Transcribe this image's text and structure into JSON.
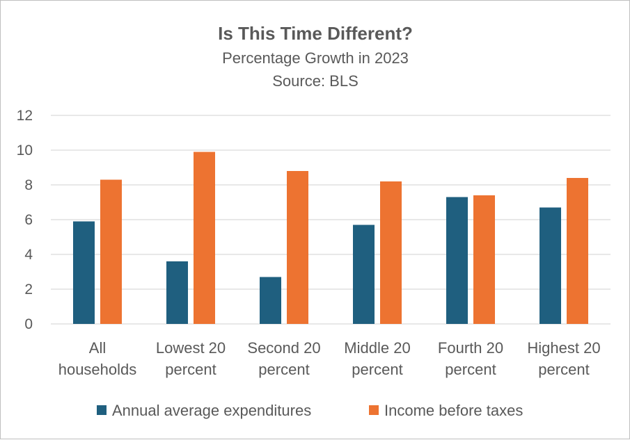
{
  "chart_data": {
    "type": "bar",
    "title": "Is This Time Different?",
    "subtitle_lines": [
      "Percentage Growth in 2023",
      "Source: BLS"
    ],
    "categories": [
      [
        "All",
        "households"
      ],
      [
        "Lowest 20",
        "percent"
      ],
      [
        "Second 20",
        "percent"
      ],
      [
        "Middle 20",
        "percent"
      ],
      [
        "Fourth 20",
        "percent"
      ],
      [
        "Highest 20",
        "percent"
      ]
    ],
    "series": [
      {
        "name": "Annual average expenditures",
        "color": "#1f5f7f",
        "values": [
          5.9,
          3.6,
          2.7,
          5.7,
          7.3,
          6.7
        ]
      },
      {
        "name": "Income before taxes",
        "color": "#ed7331",
        "values": [
          8.3,
          9.9,
          8.8,
          8.2,
          7.4,
          8.4
        ]
      }
    ],
    "ylim": [
      0,
      12
    ],
    "yticks": [
      0,
      2,
      4,
      6,
      8,
      10,
      12
    ],
    "grid": true,
    "legend_position": "bottom"
  }
}
